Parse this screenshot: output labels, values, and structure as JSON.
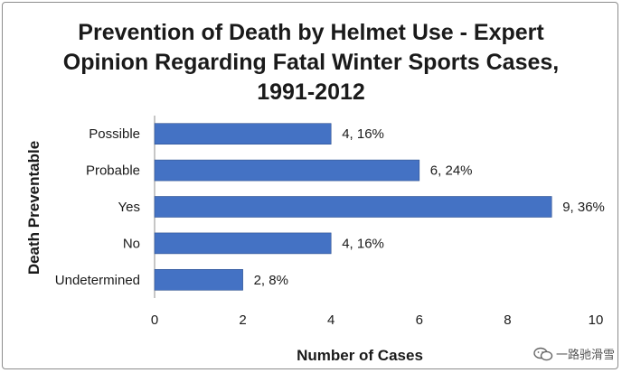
{
  "chart_data": {
    "type": "bar",
    "orientation": "horizontal",
    "title_lines": [
      "Prevention of Death by Helmet Use - Expert",
      "Opinion Regarding Fatal Winter Sports Cases,",
      "1991-2012"
    ],
    "xlabel": "Number of Cases",
    "ylabel": "Death Preventable",
    "categories": [
      "Possible",
      "Probable",
      "Yes",
      "No",
      "Undetermined"
    ],
    "values": [
      4,
      6,
      9,
      4,
      2
    ],
    "data_labels": [
      "4, 16%",
      "6, 24%",
      "9, 36%",
      "4, 16%",
      "2, 8%"
    ],
    "xlim": [
      0,
      10
    ],
    "xticks": [
      0,
      2,
      4,
      6,
      8,
      10
    ],
    "grid": false,
    "legend": "none",
    "bar_color": "#4472C4"
  },
  "watermark": "一路驰滑雪"
}
